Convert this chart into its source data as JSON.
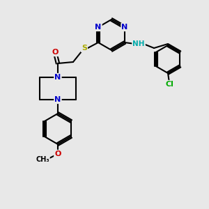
{
  "bg_color": "#e8e8e8",
  "bond_color": "#000000",
  "line_width": 1.5,
  "atom_colors": {
    "N": "#0000cc",
    "O": "#cc0000",
    "S": "#aaaa00",
    "Cl": "#00aa00",
    "NH": "#00aaaa",
    "C": "#000000"
  },
  "font_size": 8,
  "fig_size": [
    3.0,
    3.0
  ],
  "dpi": 100
}
